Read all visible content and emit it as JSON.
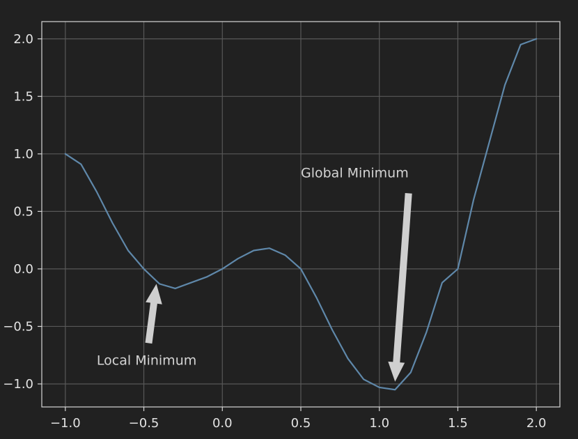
{
  "chart_data": {
    "type": "line",
    "title": "",
    "xlabel": "",
    "ylabel": "",
    "xlim": [
      -1.15,
      2.15
    ],
    "ylim": [
      -1.2,
      2.15
    ],
    "grid": true,
    "x_ticks": [
      -1.0,
      -0.5,
      0.0,
      0.5,
      1.0,
      1.5,
      2.0
    ],
    "y_ticks": [
      -1.0,
      -0.5,
      0.0,
      0.5,
      1.0,
      1.5,
      2.0
    ],
    "x_tick_labels": [
      "−1.0",
      "−0.5",
      "0.0",
      "0.5",
      "1.0",
      "1.5",
      "2.0"
    ],
    "y_tick_labels": [
      "−1.0",
      "−0.5",
      "0.0",
      "0.5",
      "1.0",
      "1.5",
      "2.0"
    ],
    "series": [
      {
        "x": [
          -1.0,
          -0.9,
          -0.8,
          -0.7,
          -0.6,
          -0.5,
          -0.4,
          -0.3,
          -0.2,
          -0.1,
          0.0,
          0.1,
          0.2,
          0.3,
          0.4,
          0.5,
          0.6,
          0.7,
          0.8,
          0.9,
          1.0,
          1.1,
          1.2,
          1.3,
          1.4,
          1.5,
          1.6,
          1.7,
          1.8,
          1.9,
          2.0
        ],
        "values": [
          1.0,
          0.91,
          0.67,
          0.4,
          0.16,
          0.0,
          -0.13,
          -0.17,
          -0.12,
          -0.07,
          0.0,
          0.09,
          0.16,
          0.18,
          0.12,
          0.0,
          -0.25,
          -0.53,
          -0.78,
          -0.96,
          -1.03,
          -1.05,
          -0.9,
          -0.55,
          -0.12,
          0.0,
          0.6,
          1.1,
          1.6,
          1.95,
          2.0
        ],
        "color": "#5f88aa"
      }
    ],
    "annotations": [
      {
        "text": "Local Minimum",
        "xy": [
          -0.42,
          -0.13
        ],
        "xytext": [
          -0.8,
          -0.8
        ],
        "arrow_color": "#cfcfcf"
      },
      {
        "text": "Global Minimum",
        "xy": [
          1.1,
          -0.98
        ],
        "xytext": [
          0.5,
          0.83
        ],
        "arrow_color": "#cfcfcf"
      }
    ],
    "colors": {
      "background": "#212121",
      "axes_face": "#212121",
      "grid": "#585858",
      "frame": "#d6d6d6",
      "line": "#5f88aa",
      "tick_label": "#e3e3e3",
      "annotation_text": "#d4d4d4"
    }
  }
}
